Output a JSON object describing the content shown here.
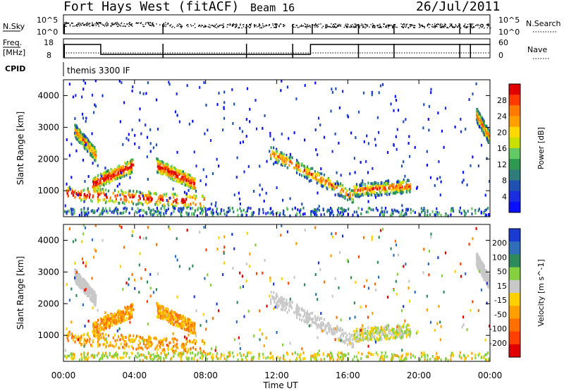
{
  "header": {
    "station": "Fort Hays West (fitACF)",
    "beam": "Beam 16",
    "date": "26/Jul/2011"
  },
  "status_panel": {
    "nsky_label": "N.Sky",
    "nsky_ticks": [
      "10^5",
      "10^0"
    ],
    "nsearch_label": "N.Search",
    "nsearch_ticks": [
      "10^5",
      "10^0"
    ],
    "freq_label": "Freq.",
    "freq_unit": "[MHz]",
    "freq_ticks": [
      "18",
      "8"
    ],
    "nave_label": "Nave",
    "nave_ticks": [
      "60",
      "0"
    ],
    "cpid_label": "CPID",
    "cpid_value": "themis 3300 IF"
  },
  "chart_data": [
    {
      "type": "heatmap",
      "parameter": "Power",
      "ylabel": "Slant Range [km]",
      "xlabel": "",
      "xlim": [
        0,
        24
      ],
      "ylim": [
        180,
        4500
      ],
      "yticks": [
        "1000",
        "2000",
        "3000",
        "4000"
      ],
      "colorbar_label": "Power [dB]",
      "colorbar_ticks": [
        "28",
        "24",
        "20",
        "16",
        "12",
        "8",
        "4"
      ],
      "colorbar_colors": [
        "#e00000",
        "#ff3a00",
        "#ff7a00",
        "#ffa000",
        "#ffd800",
        "#c8e000",
        "#64c864",
        "#2e9850",
        "#2e7d7a",
        "#2050b0",
        "#1a2ee0",
        "#0a10ff"
      ],
      "features": [
        {
          "name": "early-arc-upper",
          "t": [
            0.6,
            1.8
          ],
          "r": [
            2900,
            2100
          ]
        },
        {
          "name": "morning-band-1",
          "t": [
            1.6,
            3.9
          ],
          "r": [
            1200,
            1800
          ]
        },
        {
          "name": "near-range-band",
          "t": [
            0.1,
            7.9
          ],
          "r": [
            900,
            650
          ]
        },
        {
          "name": "dawn-patch",
          "t": [
            5.2,
            7.4
          ],
          "r": [
            1800,
            1200
          ]
        },
        {
          "name": "afternoon-band",
          "t": [
            11.6,
            16.3
          ],
          "r": [
            2200,
            800
          ]
        },
        {
          "name": "evening-band",
          "t": [
            16.3,
            19.5
          ],
          "r": [
            1000,
            1150
          ]
        },
        {
          "name": "late-arc",
          "t": [
            23.2,
            23.9
          ],
          "r": [
            3400,
            2700
          ]
        }
      ]
    },
    {
      "type": "heatmap",
      "parameter": "Velocity",
      "ylabel": "Slant Range [km]",
      "xlabel": "Time UT",
      "xlim": [
        0,
        24
      ],
      "ylim": [
        180,
        4500
      ],
      "xticks": [
        "00:00",
        "04:00",
        "08:00",
        "12:00",
        "16:00",
        "20:00",
        "00:00"
      ],
      "yticks": [
        "1000",
        "2000",
        "3000",
        "4000"
      ],
      "colorbar_label": "Velocity [m s^-1]",
      "colorbar_ticks": [
        "200",
        "100",
        "50",
        "15",
        "-15",
        "-50",
        "-100",
        "-200"
      ],
      "colorbar_colors": [
        "#1a3ad0",
        "#2e6fb8",
        "#2e8a5a",
        "#84d040",
        "#c8c8c8",
        "#ffd000",
        "#ffa000",
        "#ff7000",
        "#ff4000",
        "#e00000"
      ]
    }
  ]
}
